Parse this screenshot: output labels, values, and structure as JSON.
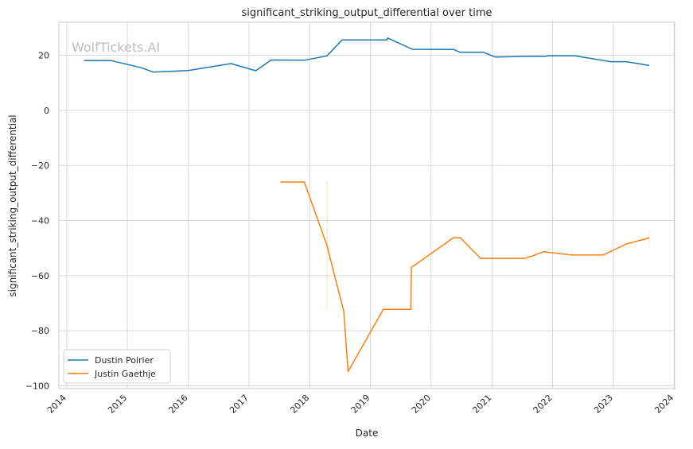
{
  "watermark": "WolfTickets.AI",
  "chart_data": {
    "type": "line",
    "title": "significant_striking_output_differential over time",
    "xlabel": "Date",
    "ylabel": "significant_striking_output_differential",
    "x_ticks": [
      "2014",
      "2015",
      "2016",
      "2017",
      "2018",
      "2019",
      "2020",
      "2021",
      "2022",
      "2023",
      "2024"
    ],
    "y_ticks": [
      20,
      0,
      -20,
      -40,
      -60,
      -80,
      -100
    ],
    "xlim": [
      "2013-11-15",
      "2024-01-05"
    ],
    "ylim": [
      -101,
      32
    ],
    "grid": true,
    "legend_position": "lower-left",
    "series": [
      {
        "name": "Dustin Poirier",
        "color": "#1f77b4",
        "points": [
          [
            "2014-04-15",
            18.1
          ],
          [
            "2014-09-25",
            18.1
          ],
          [
            "2015-03-25",
            15.5
          ],
          [
            "2015-06-05",
            13.9
          ],
          [
            "2016-01-02",
            14.5
          ],
          [
            "2016-09-15",
            17.0
          ],
          [
            "2017-02-10",
            14.4
          ],
          [
            "2017-05-15",
            18.3
          ],
          [
            "2017-11-30",
            18.2
          ],
          [
            "2018-04-15",
            19.8
          ],
          [
            "2018-07-15",
            25.6
          ],
          [
            "2019-04-10",
            25.6
          ],
          [
            "2019-04-15",
            26.3
          ],
          [
            "2019-09-10",
            22.2
          ],
          [
            "2020-05-15",
            22.1
          ],
          [
            "2020-06-25",
            21.1
          ],
          [
            "2020-11-10",
            21.1
          ],
          [
            "2021-01-20",
            19.4
          ],
          [
            "2021-07-15",
            19.6
          ],
          [
            "2021-11-15",
            19.6
          ],
          [
            "2021-12-05",
            19.8
          ],
          [
            "2022-05-15",
            19.8
          ],
          [
            "2022-12-15",
            17.7
          ],
          [
            "2023-03-20",
            17.7
          ],
          [
            "2023-08-05",
            16.3
          ]
        ]
      },
      {
        "name": "Justin Gaethje",
        "color": "#ff7f0e",
        "points": [
          [
            "2017-07-10",
            -26.0
          ],
          [
            "2017-11-30",
            -26.0
          ],
          [
            "2018-04-15",
            -49.0
          ],
          [
            "2018-07-25",
            -73.0
          ],
          [
            "2018-08-20",
            -94.8
          ],
          [
            "2019-03-20",
            -72.2
          ],
          [
            "2019-09-01",
            -72.2
          ],
          [
            "2019-09-05",
            -57.0
          ],
          [
            "2020-05-15",
            -46.2
          ],
          [
            "2020-06-25",
            -46.2
          ],
          [
            "2020-10-24",
            -53.7
          ],
          [
            "2021-07-20",
            -53.7
          ],
          [
            "2021-11-10",
            -51.3
          ],
          [
            "2022-04-25",
            -52.5
          ],
          [
            "2022-11-01",
            -52.5
          ],
          [
            "2023-03-20",
            -48.5
          ],
          [
            "2023-08-05",
            -46.3
          ]
        ]
      }
    ],
    "error_bands": [
      {
        "series": "Justin Gaethje",
        "x": "2018-04-15",
        "y_low": -72.5,
        "y_high": -25.5
      },
      {
        "series": "Justin Gaethje",
        "x": "2023-08-05",
        "y_low": -49.5,
        "y_high": -43.5
      }
    ]
  }
}
